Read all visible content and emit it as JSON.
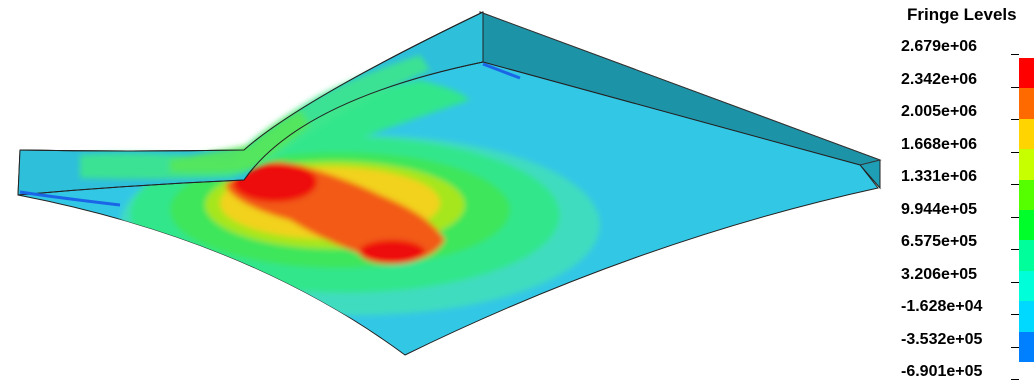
{
  "legend": {
    "title": "Fringe Levels",
    "levels": [
      {
        "label": "2.679e+06",
        "color": "#ff0000"
      },
      {
        "label": "2.342e+06",
        "color": "#ff6a00"
      },
      {
        "label": "2.005e+06",
        "color": "#ffd400"
      },
      {
        "label": "1.668e+06",
        "color": "#c8ff00"
      },
      {
        "label": "1.331e+06",
        "color": "#55ff00"
      },
      {
        "label": "9.944e+05",
        "color": "#00ff2a"
      },
      {
        "label": "6.575e+05",
        "color": "#00ff9a"
      },
      {
        "label": "3.206e+05",
        "color": "#00ffd9"
      },
      {
        "label": "-1.628e+04",
        "color": "#00d9ff"
      },
      {
        "label": "-3.532e+05",
        "color": "#0080ff"
      },
      {
        "label": "-6.901e+05",
        "color": "#0000ff"
      }
    ]
  },
  "contour_colors": {
    "background_plate": "#33c7e6",
    "edge_face": "#1f9fb5",
    "outline": "#222222",
    "band_cyan_green": "#40dcc0",
    "band_green": "#33e68c",
    "band_light_green": "#3ee65a",
    "band_yellow_green": "#a6e61a",
    "band_yellow": "#f2d21a",
    "band_orange": "#f25a14",
    "band_red": "#ee1010",
    "band_blue": "#1a66e6"
  }
}
